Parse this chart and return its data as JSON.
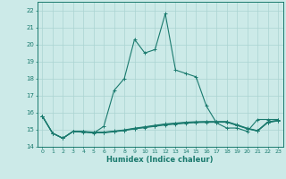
{
  "xlabel": "Humidex (Indice chaleur)",
  "background_color": "#cceae8",
  "grid_color": "#aad4d2",
  "line_color": "#1a7a6e",
  "x_values": [
    0,
    1,
    2,
    3,
    4,
    5,
    6,
    7,
    8,
    9,
    10,
    11,
    12,
    13,
    14,
    15,
    16,
    17,
    18,
    19,
    20,
    21,
    22,
    23
  ],
  "series": [
    [
      15.8,
      14.8,
      14.5,
      14.9,
      14.9,
      14.8,
      15.2,
      17.3,
      18.0,
      20.3,
      19.5,
      19.7,
      21.8,
      18.5,
      18.3,
      18.1,
      16.4,
      15.4,
      15.1,
      15.1,
      14.9,
      15.6,
      15.6,
      15.6
    ],
    [
      15.8,
      14.8,
      14.5,
      14.9,
      14.85,
      14.82,
      14.82,
      14.88,
      14.95,
      15.05,
      15.12,
      15.2,
      15.28,
      15.33,
      15.38,
      15.42,
      15.43,
      15.44,
      15.44,
      15.25,
      15.06,
      14.92,
      15.42,
      15.52
    ],
    [
      15.8,
      14.8,
      14.5,
      14.9,
      14.87,
      14.84,
      14.84,
      14.9,
      14.97,
      15.07,
      15.15,
      15.23,
      15.31,
      15.36,
      15.41,
      15.44,
      15.46,
      15.46,
      15.46,
      15.27,
      15.07,
      14.93,
      15.44,
      15.54
    ],
    [
      15.8,
      14.8,
      14.5,
      14.9,
      14.9,
      14.86,
      14.86,
      14.92,
      14.99,
      15.09,
      15.17,
      15.26,
      15.34,
      15.39,
      15.44,
      15.47,
      15.48,
      15.48,
      15.48,
      15.29,
      15.09,
      14.95,
      15.46,
      15.56
    ]
  ],
  "ylim": [
    14.0,
    22.5
  ],
  "xlim": [
    -0.5,
    23.5
  ],
  "yticks": [
    14,
    15,
    16,
    17,
    18,
    19,
    20,
    21,
    22
  ],
  "xtick_labels": [
    "0",
    "1",
    "2",
    "3",
    "4",
    "5",
    "6",
    "7",
    "8",
    "9",
    "10",
    "11",
    "12",
    "13",
    "14",
    "15",
    "16",
    "17",
    "18",
    "19",
    "20",
    "21",
    "22",
    "23"
  ],
  "marker": "+",
  "markersize": 3,
  "linewidth": 0.8
}
